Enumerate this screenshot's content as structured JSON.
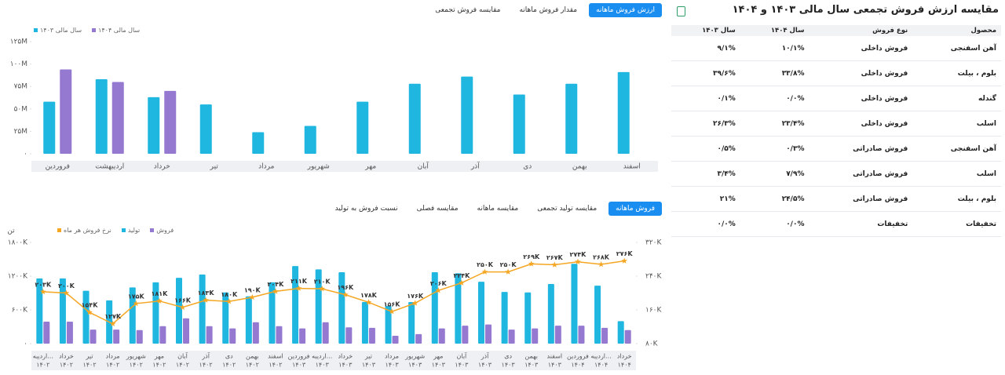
{
  "header": {
    "title": "مقایسه ارزش فروش تجمعی سال مالی ۱۴۰۳ و ۱۴۰۴"
  },
  "table": {
    "columns": [
      "محصول",
      "نوع فروش",
      "سال ۱۴۰۴",
      "سال ۱۴۰۳"
    ],
    "rows": [
      [
        "آهن اسفنجی",
        "فروش داخلی",
        "۱۰/۱%",
        "۹/۱%"
      ],
      [
        "بلوم ، بیلت",
        "فروش داخلی",
        "۳۳/۸%",
        "۳۹/۶%"
      ],
      [
        "گندله",
        "فروش داخلی",
        "۰/۰%",
        "۰/۱%"
      ],
      [
        "اسلب",
        "فروش داخلی",
        "۲۳/۴%",
        "۲۶/۳%"
      ],
      [
        "آهن اسفنجی",
        "فروش صادراتی",
        "۰/۳%",
        "۰/۵%"
      ],
      [
        "اسلب",
        "فروش صادراتی",
        "۷/۹%",
        "۳/۴%"
      ],
      [
        "بلوم ، بیلت",
        "فروش صادراتی",
        "۲۴/۵%",
        "۲۱%"
      ],
      [
        "تخفیفات",
        "تخفیفات",
        "۰/۰%",
        "۰/۰%"
      ]
    ]
  },
  "chart_data": [
    {
      "type": "bar",
      "tabs": [
        "ارزش فروش ماهانه",
        "مقدار فروش ماهانه",
        "مقایسه فروش تجمعی"
      ],
      "active_tab": 0,
      "categories": [
        "فروردین",
        "اردیبهشت",
        "خرداد",
        "تیر",
        "مرداد",
        "شهریور",
        "مهر",
        "آبان",
        "آذر",
        "دی",
        "بهمن",
        "اسفند"
      ],
      "series": [
        {
          "name": "سال مالی ۱۴۰۳",
          "color": "#1fb6e0",
          "values": [
            58000000,
            83000000,
            63000000,
            55000000,
            24000000,
            31000000,
            58000000,
            78000000,
            86000000,
            66000000,
            78000000,
            91000000
          ]
        },
        {
          "name": "سال مالی ۱۴۰۴",
          "color": "#9579d1",
          "values": [
            94000000,
            80000000,
            70000000,
            null,
            null,
            null,
            null,
            null,
            null,
            null,
            null,
            null
          ]
        }
      ],
      "ylim": [
        0,
        125000000
      ],
      "yticks": [
        {
          "value": 0,
          "label": "۰"
        },
        {
          "value": 25000000,
          "label": "۲۵M"
        },
        {
          "value": 50000000,
          "label": "۵۰M"
        },
        {
          "value": 75000000,
          "label": "۷۵M"
        },
        {
          "value": 100000000,
          "label": "۱۰۰M"
        },
        {
          "value": 125000000,
          "label": "۱۲۵M"
        }
      ]
    },
    {
      "type": "combo",
      "tabs": [
        "فروش ماهانه",
        "مقایسه تولید تجمعی",
        "مقایسه ماهانه",
        "مقایسه فصلی",
        "نسبت فروش به تولید"
      ],
      "active_tab": 0,
      "y_label": "تن",
      "categories": [
        [
          "اردیبه...",
          "۱۴۰۲"
        ],
        [
          "خرداد",
          "۱۴۰۲"
        ],
        [
          "تیر",
          "۱۴۰۲"
        ],
        [
          "مرداد",
          "۱۴۰۲"
        ],
        [
          "شهریور",
          "۱۴۰۲"
        ],
        [
          "مهر",
          "۱۴۰۲"
        ],
        [
          "آبان",
          "۱۴۰۲"
        ],
        [
          "آذر",
          "۱۴۰۲"
        ],
        [
          "دی",
          "۱۴۰۲"
        ],
        [
          "بهمن",
          "۱۴۰۲"
        ],
        [
          "اسفند",
          "۱۴۰۲"
        ],
        [
          "فروردین",
          "۱۴۰۳"
        ],
        [
          "اردیبه...",
          "۱۴۰۳"
        ],
        [
          "خرداد",
          "۱۴۰۳"
        ],
        [
          "تیر",
          "۱۴۰۳"
        ],
        [
          "مرداد",
          "۱۴۰۳"
        ],
        [
          "شهریور",
          "۱۴۰۳"
        ],
        [
          "مهر",
          "۱۴۰۳"
        ],
        [
          "آبان",
          "۱۴۰۳"
        ],
        [
          "آذر",
          "۱۴۰۳"
        ],
        [
          "دی",
          "۱۴۰۳"
        ],
        [
          "بهمن",
          "۱۴۰۳"
        ],
        [
          "اسفند",
          "۱۴۰۳"
        ],
        [
          "فروردین",
          "۱۴۰۴"
        ],
        [
          "اردیبه...",
          "۱۴۰۴"
        ],
        [
          "خرداد",
          "۱۴۰۴"
        ]
      ],
      "series": [
        {
          "name": "نرخ فروش هر ماه",
          "color": "#f5a623",
          "type": "line",
          "axis": "y2",
          "values": [
            203000,
            200000,
            154000,
            127000,
            175000,
            181000,
            166000,
            183000,
            180000,
            190000,
            204000,
            211000,
            210000,
            196000,
            178000,
            156000,
            176000,
            206000,
            224000,
            250000,
            250000,
            269000,
            267000,
            274000,
            268000,
            276000
          ],
          "value_labels": [
            "۲۰۳K",
            "۲۰۰K",
            "۱۵۴K",
            "۱۲۷K",
            "۱۷۵K",
            "۱۸۱K",
            "۱۶۶K",
            "۱۸۳K",
            "۱۸۰K",
            "۱۹۰K",
            "۲۰۴K",
            "۲۱۱K",
            "۲۱۰K",
            "۱۹۶K",
            "۱۷۸K",
            "۱۵۶K",
            "۱۷۶K",
            "۲۰۶K",
            "۲۲۴K",
            "۲۵۰K",
            "۲۵۰K",
            "۲۶۹K",
            "۲۶۷K",
            "۲۷۴K",
            "۲۶۸K",
            "۲۷۶K"
          ]
        },
        {
          "name": "تولید",
          "color": "#1fb6e0",
          "type": "bar",
          "values": [
            1160000,
            1160000,
            940000,
            770000,
            1000000,
            1090000,
            1170000,
            1230000,
            910000,
            840000,
            1090000,
            1380000,
            1320000,
            1270000,
            740000,
            670000,
            740000,
            1270000,
            1250000,
            1100000,
            920000,
            910000,
            1060000,
            1420000,
            1030000,
            400000
          ]
        },
        {
          "name": "فروش",
          "color": "#9579d1",
          "type": "bar",
          "values": [
            390000,
            390000,
            250000,
            250000,
            240000,
            310000,
            450000,
            310000,
            270000,
            380000,
            310000,
            270000,
            380000,
            290000,
            280000,
            140000,
            170000,
            270000,
            320000,
            340000,
            250000,
            270000,
            320000,
            320000,
            280000,
            240000
          ]
        }
      ],
      "ylim": [
        0,
        1800000
      ],
      "yticks": [
        {
          "value": 0,
          "label": "۰"
        },
        {
          "value": 600000,
          "label": "۶۰۰K"
        },
        {
          "value": 1200000,
          "label": "۱۲۰۰K"
        },
        {
          "value": 1800000,
          "label": "۱۸۰۰K"
        }
      ],
      "y2lim": [
        80000,
        320000
      ],
      "y2ticks": [
        {
          "value": 80000,
          "label": "۸۰K"
        },
        {
          "value": 160000,
          "label": "۱۶۰K"
        },
        {
          "value": 240000,
          "label": "۲۴۰K"
        },
        {
          "value": 320000,
          "label": "۳۲۰K"
        }
      ]
    }
  ]
}
